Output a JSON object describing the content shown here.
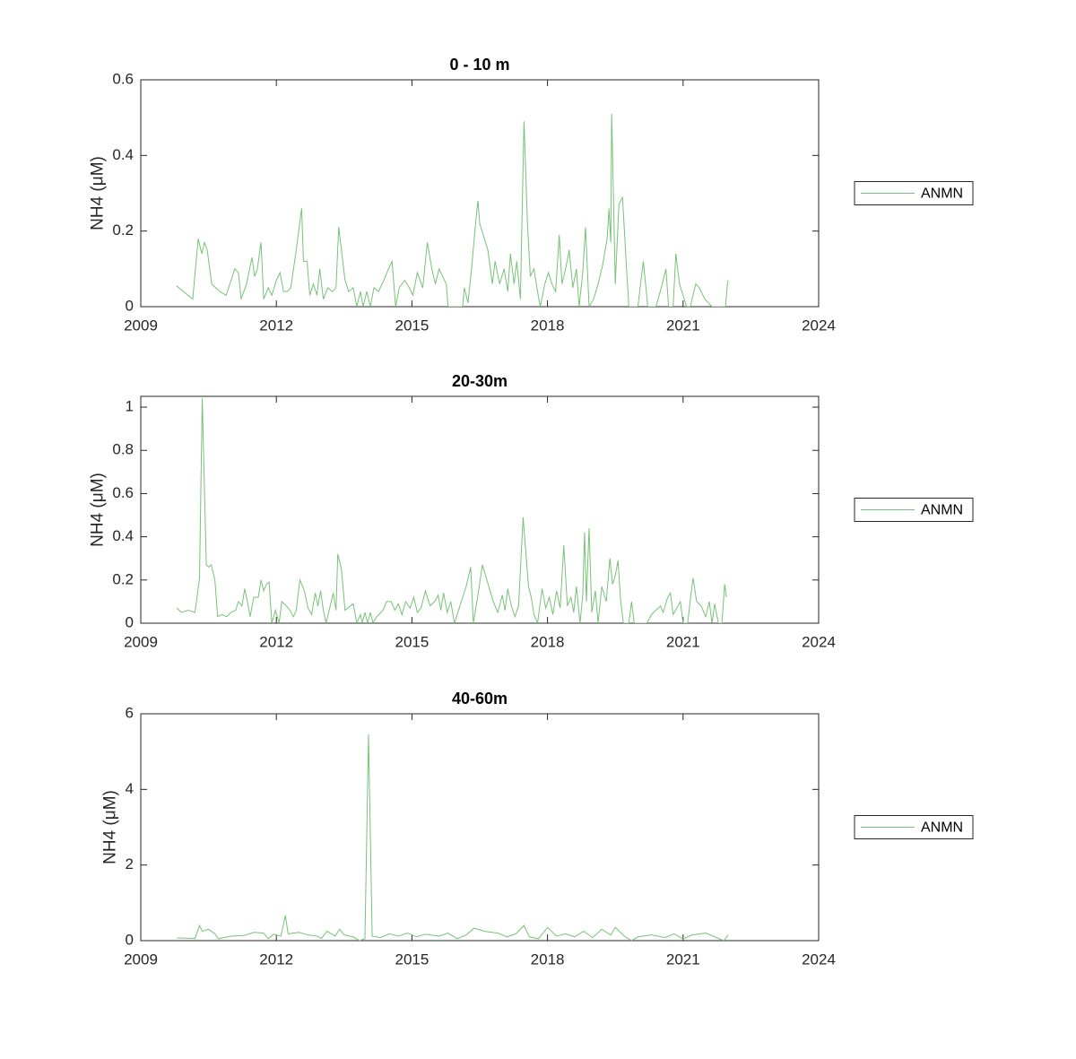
{
  "chart_data": [
    {
      "type": "line",
      "title": "0 - 10 m",
      "ylabel": "NH4 (μM)",
      "x": [
        2009.79,
        2010.15,
        2010.27,
        2010.35,
        2010.41,
        2010.47,
        2010.57,
        2010.75,
        2010.89,
        2011.0,
        2011.08,
        2011.16,
        2011.22,
        2011.34,
        2011.46,
        2011.52,
        2011.58,
        2011.66,
        2011.72,
        2011.82,
        2011.9,
        2012.0,
        2012.08,
        2012.16,
        2012.24,
        2012.32,
        2012.44,
        2012.56,
        2012.6,
        2012.68,
        2012.74,
        2012.82,
        2012.9,
        2012.96,
        2013.04,
        2013.14,
        2013.24,
        2013.32,
        2013.38,
        2013.45,
        2013.52,
        2013.6,
        2013.7,
        2013.78,
        2013.86,
        2013.92,
        2014.0,
        2014.08,
        2014.16,
        2014.26,
        2014.38,
        2014.48,
        2014.56,
        2014.64,
        2014.72,
        2014.84,
        2014.94,
        2015.02,
        2015.12,
        2015.24,
        2015.34,
        2015.44,
        2015.52,
        2015.6,
        2015.68,
        2015.76,
        2015.8,
        2016.12,
        2016.16,
        2016.24,
        2016.32,
        2016.4,
        2016.46,
        2016.5,
        2016.68,
        2016.78,
        2016.84,
        2016.94,
        2017.04,
        2017.12,
        2017.18,
        2017.26,
        2017.32,
        2017.4,
        2017.48,
        2017.56,
        2017.62,
        2017.7,
        2017.78,
        2017.84,
        2017.94,
        2018.02,
        2018.1,
        2018.18,
        2018.26,
        2018.32,
        2018.4,
        2018.48,
        2018.56,
        2018.64,
        2018.7,
        2018.78,
        2018.84,
        2018.92,
        2019.02,
        2019.12,
        2019.22,
        2019.32,
        2019.36,
        2019.4,
        2019.42,
        2019.5,
        2019.58,
        2019.66,
        2019.74,
        2019.8,
        2020.0,
        2020.12,
        2020.22,
        2020.4,
        2020.54,
        2020.62,
        2020.68,
        2020.78,
        2020.84,
        2020.92,
        2021.0,
        2021.08,
        2021.16,
        2021.28,
        2021.36,
        2021.48,
        2021.64,
        2021.94,
        2021.98,
        2022.0
      ],
      "series": [
        {
          "name": "ANMN",
          "color": "#77c277",
          "values": [
            0.055,
            0.02,
            0.18,
            0.14,
            0.17,
            0.15,
            0.06,
            0.04,
            0.03,
            0.07,
            0.1,
            0.09,
            0.02,
            0.06,
            0.13,
            0.08,
            0.1,
            0.17,
            0.02,
            0.05,
            0.03,
            0.07,
            0.09,
            0.04,
            0.04,
            0.05,
            0.15,
            0.26,
            0.12,
            0.12,
            0.03,
            0.06,
            0.03,
            0.1,
            0.02,
            0.05,
            0.04,
            0.05,
            0.21,
            0.14,
            0.07,
            0.04,
            0.05,
            0,
            0.04,
            0,
            0.04,
            0,
            0.05,
            0.04,
            0.07,
            0.1,
            0.12,
            0,
            0.05,
            0.07,
            0.05,
            0.03,
            0.09,
            0.05,
            0.17,
            0.1,
            0.06,
            0.1,
            0.08,
            0.06,
            0,
            0,
            0.05,
            0.01,
            0.1,
            0.21,
            0.28,
            0.22,
            0.15,
            0.06,
            0.12,
            0.06,
            0.1,
            0.04,
            0.14,
            0.06,
            0.12,
            0.02,
            0.49,
            0.21,
            0.08,
            0.1,
            0.04,
            0,
            0.06,
            0.09,
            0.06,
            0.04,
            0.19,
            0.06,
            0.1,
            0.15,
            0.05,
            0.1,
            0,
            0.09,
            0.21,
            0,
            0.02,
            0.06,
            0.11,
            0.18,
            0.26,
            0.17,
            0.51,
            0.06,
            0.27,
            0.29,
            0.12,
            0,
            0,
            0.12,
            0,
            0,
            0.06,
            0.1,
            0,
            0,
            0.14,
            0.06,
            0.03,
            0,
            0,
            0.06,
            0.05,
            0.02,
            0,
            0,
            0.06,
            0.07
          ]
        }
      ],
      "xlim": [
        2009,
        2024
      ],
      "xticks": [
        2009,
        2012,
        2015,
        2018,
        2021,
        2024
      ],
      "ylim": [
        0,
        0.6
      ],
      "yticks": [
        0,
        0.2,
        0.4,
        0.6
      ],
      "legend": "eastoutside"
    },
    {
      "type": "line",
      "title": "20-30m",
      "ylabel": "NH4 (μM)",
      "x": [
        2009.8,
        2009.9,
        2010.05,
        2010.2,
        2010.3,
        2010.36,
        2010.45,
        2010.5,
        2010.56,
        2010.64,
        2010.7,
        2010.8,
        2010.9,
        2011.0,
        2011.1,
        2011.16,
        2011.24,
        2011.3,
        2011.36,
        2011.42,
        2011.5,
        2011.6,
        2011.66,
        2011.72,
        2011.78,
        2011.84,
        2011.9,
        2011.98,
        2012.06,
        2012.12,
        2012.22,
        2012.3,
        2012.38,
        2012.44,
        2012.52,
        2012.62,
        2012.7,
        2012.78,
        2012.86,
        2012.92,
        2012.98,
        2013.04,
        2013.1,
        2013.18,
        2013.26,
        2013.32,
        2013.36,
        2013.44,
        2013.52,
        2013.7,
        2013.78,
        2013.86,
        2013.9,
        2013.96,
        2014.02,
        2014.08,
        2014.14,
        2014.22,
        2014.36,
        2014.44,
        2014.54,
        2014.62,
        2014.7,
        2014.78,
        2014.86,
        2014.96,
        2015.04,
        2015.12,
        2015.2,
        2015.3,
        2015.4,
        2015.5,
        2015.58,
        2015.64,
        2015.7,
        2015.78,
        2015.86,
        2015.94,
        2016.2,
        2016.3,
        2016.36,
        2016.46,
        2016.56,
        2016.8,
        2016.9,
        2017.0,
        2017.06,
        2017.12,
        2017.2,
        2017.28,
        2017.36,
        2017.46,
        2017.58,
        2017.64,
        2017.7,
        2017.78,
        2017.88,
        2017.96,
        2018.04,
        2018.12,
        2018.2,
        2018.28,
        2018.36,
        2018.44,
        2018.52,
        2018.58,
        2018.64,
        2018.72,
        2018.78,
        2018.82,
        2018.86,
        2018.92,
        2018.98,
        2019.06,
        2019.12,
        2019.2,
        2019.3,
        2019.38,
        2019.44,
        2019.5,
        2019.56,
        2019.62,
        2019.68,
        2019.8,
        2019.86,
        2019.92,
        2020.2,
        2020.3,
        2020.4,
        2020.5,
        2020.56,
        2020.66,
        2020.72,
        2020.78,
        2020.86,
        2020.94,
        2021.0,
        2021.1,
        2021.22,
        2021.3,
        2021.4,
        2021.5,
        2021.58,
        2021.64,
        2021.7,
        2021.78,
        2021.86,
        2021.92,
        2021.96
      ],
      "series": [
        {
          "name": "ANMN",
          "color": "#77c277",
          "values": [
            0.07,
            0.05,
            0.06,
            0.05,
            0.21,
            1.04,
            0.27,
            0.26,
            0.27,
            0.2,
            0.03,
            0.04,
            0.03,
            0.05,
            0.06,
            0.1,
            0.08,
            0.16,
            0.1,
            0.03,
            0.12,
            0.12,
            0.2,
            0.15,
            0.18,
            0.19,
            0,
            0.06,
            0,
            0.1,
            0.08,
            0.06,
            0.03,
            0.06,
            0.2,
            0.15,
            0.07,
            0.04,
            0.14,
            0.08,
            0.15,
            0.06,
            0,
            0.07,
            0.14,
            0.06,
            0.32,
            0.25,
            0.06,
            0.09,
            0,
            0.04,
            0,
            0.05,
            0,
            0.05,
            0,
            0.03,
            0.06,
            0.1,
            0.1,
            0.06,
            0.09,
            0.04,
            0.1,
            0.07,
            0.12,
            0.05,
            0.07,
            0.15,
            0.08,
            0.1,
            0.13,
            0.06,
            0.14,
            0.05,
            0.1,
            0,
            0.17,
            0.26,
            0,
            0.13,
            0.27,
            0.1,
            0.05,
            0.13,
            0.06,
            0.16,
            0.08,
            0.03,
            0.08,
            0.49,
            0.17,
            0.12,
            0.04,
            0,
            0.16,
            0.07,
            0.12,
            0.04,
            0.15,
            0.07,
            0.36,
            0.08,
            0.12,
            0.05,
            0.17,
            0,
            0.13,
            0.42,
            0.1,
            0.44,
            0.05,
            0.15,
            0,
            0.17,
            0.1,
            0.3,
            0.18,
            0.22,
            0.29,
            0.1,
            0,
            0,
            0.1,
            0,
            0,
            0.04,
            0.06,
            0.08,
            0.05,
            0.12,
            0.14,
            0.04,
            0.07,
            0.1,
            0,
            0,
            0.21,
            0.1,
            0.08,
            0.03,
            0.1,
            0,
            0.09,
            0,
            0,
            0.18,
            0.12
          ]
        }
      ],
      "xlim": [
        2009,
        2024
      ],
      "xticks": [
        2009,
        2012,
        2015,
        2018,
        2021,
        2024
      ],
      "ylim": [
        0,
        1.05
      ],
      "yticks": [
        0,
        0.2,
        0.4,
        0.6,
        0.8,
        1
      ],
      "legend": "eastoutside"
    },
    {
      "type": "line",
      "title": "40-60m",
      "ylabel": "NH4 (μM)",
      "x": [
        2009.8,
        2010.2,
        2010.3,
        2010.36,
        2010.5,
        2010.64,
        2010.72,
        2011.0,
        2011.3,
        2011.5,
        2011.72,
        2011.82,
        2011.94,
        2012.1,
        2012.2,
        2012.26,
        2012.5,
        2012.7,
        2012.9,
        2013.0,
        2013.12,
        2013.3,
        2013.4,
        2013.5,
        2013.7,
        2013.84,
        2013.96,
        2014.04,
        2014.12,
        2014.3,
        2014.5,
        2014.7,
        2014.9,
        2015.1,
        2015.3,
        2015.6,
        2015.8,
        2016.0,
        2016.2,
        2016.38,
        2016.6,
        2016.9,
        2017.1,
        2017.3,
        2017.48,
        2017.6,
        2017.8,
        2018.0,
        2018.2,
        2018.4,
        2018.6,
        2018.8,
        2019.0,
        2019.2,
        2019.4,
        2019.5,
        2019.7,
        2019.86,
        2020.0,
        2020.3,
        2020.6,
        2020.8,
        2021.0,
        2021.2,
        2021.5,
        2021.8,
        2021.9,
        2022.0
      ],
      "series": [
        {
          "name": "ANMN",
          "color": "#77c277",
          "values": [
            0.07,
            0.06,
            0.4,
            0.25,
            0.3,
            0.18,
            0.05,
            0.12,
            0.14,
            0.22,
            0.2,
            0.05,
            0.17,
            0.12,
            0.67,
            0.18,
            0.22,
            0.15,
            0.12,
            0.06,
            0.25,
            0.12,
            0.3,
            0.15,
            0.1,
            0,
            0.05,
            5.45,
            0.12,
            0.08,
            0.18,
            0.12,
            0.2,
            0.1,
            0.17,
            0.12,
            0.2,
            0.05,
            0.15,
            0.33,
            0.25,
            0.2,
            0.1,
            0.18,
            0.4,
            0.1,
            0.05,
            0.35,
            0.12,
            0.18,
            0.1,
            0.25,
            0.08,
            0.3,
            0.15,
            0.35,
            0.12,
            0,
            0.1,
            0.15,
            0.08,
            0.18,
            0.05,
            0.15,
            0.2,
            0.05,
            0,
            0.15
          ]
        }
      ],
      "xlim": [
        2009,
        2024
      ],
      "xticks": [
        2009,
        2012,
        2015,
        2018,
        2021,
        2024
      ],
      "ylim": [
        0,
        6
      ],
      "yticks": [
        0,
        2,
        4,
        6
      ],
      "legend": "eastoutside"
    }
  ]
}
